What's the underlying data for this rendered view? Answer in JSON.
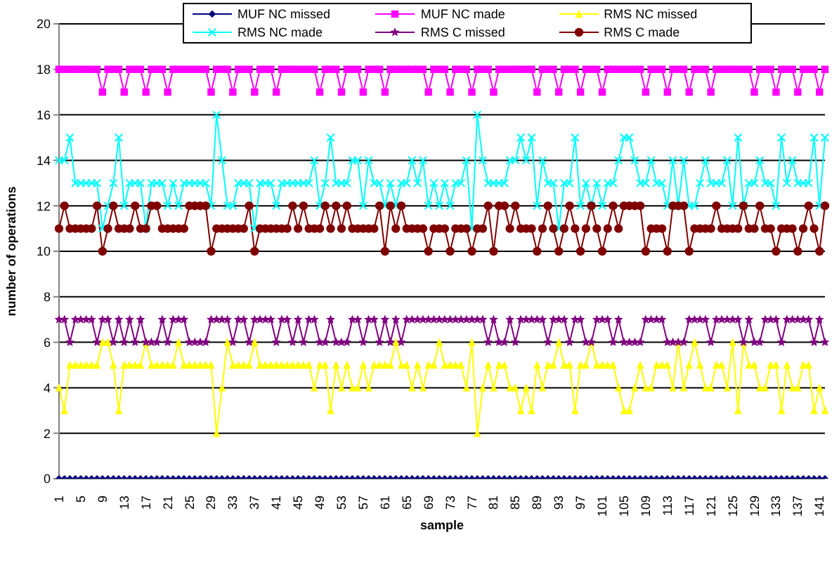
{
  "chart_data": {
    "type": "line",
    "xlabel": "sample",
    "ylabel": "number of operations",
    "categories": [
      "1",
      null,
      null,
      null,
      "5",
      null,
      null,
      null,
      "9",
      null,
      null,
      null,
      "13",
      null,
      null,
      null,
      "17",
      null,
      null,
      null,
      "21",
      null,
      null,
      null,
      "25",
      null,
      null,
      null,
      "29",
      null,
      null,
      null,
      "33",
      null,
      null,
      null,
      "37",
      null,
      null,
      null,
      "41",
      null,
      null,
      null,
      "45",
      null,
      null,
      null,
      "49",
      null,
      null,
      null,
      "53",
      null,
      null,
      null,
      "57",
      null,
      null,
      null,
      "61",
      null,
      null,
      null,
      "65",
      null,
      null,
      null,
      "69",
      null,
      null,
      null,
      "73",
      null,
      null,
      null,
      "77",
      null,
      null,
      null,
      "81",
      null,
      null,
      null,
      "85",
      null,
      null,
      null,
      "89",
      null,
      null,
      null,
      "93",
      null,
      null,
      null,
      "97",
      null,
      null,
      null,
      "101",
      null,
      null,
      null,
      "105",
      null,
      null,
      null,
      "109",
      null,
      null,
      null,
      "113",
      null,
      null,
      null,
      "117",
      null,
      null,
      null,
      "121",
      null,
      null,
      null,
      "125",
      null,
      null,
      null,
      "129",
      null,
      null,
      null,
      "133",
      null,
      null,
      null,
      "137",
      null,
      null,
      null,
      "141",
      null
    ],
    "series": [
      {
        "name": "MUF NC missed",
        "color": "#000080",
        "marker": "diamond",
        "values": [
          0,
          0,
          0,
          0,
          0,
          0,
          0,
          0,
          0,
          0,
          0,
          0,
          0,
          0,
          0,
          0,
          0,
          0,
          0,
          0,
          0,
          0,
          0,
          0,
          0,
          0,
          0,
          0,
          0,
          0,
          0,
          0,
          0,
          0,
          0,
          0,
          0,
          0,
          0,
          0,
          0,
          0,
          0,
          0,
          0,
          0,
          0,
          0,
          0,
          0,
          0,
          0,
          0,
          0,
          0,
          0,
          0,
          0,
          0,
          0,
          0,
          0,
          0,
          0,
          0,
          0,
          0,
          0,
          0,
          0,
          0,
          0,
          0,
          0,
          0,
          0,
          0,
          0,
          0,
          0,
          0,
          0,
          0,
          0,
          0,
          0,
          0,
          0,
          0,
          0,
          0,
          0,
          0,
          0,
          0,
          0,
          0,
          0,
          0,
          0,
          0,
          0,
          0,
          0,
          0,
          0,
          0,
          0,
          0,
          0,
          0,
          0,
          0,
          0,
          0,
          0,
          0,
          0,
          0,
          0,
          0,
          0,
          0,
          0,
          0,
          0,
          0,
          0,
          0,
          0,
          0,
          0,
          0,
          0,
          0,
          0,
          0,
          0,
          0,
          0,
          0,
          0
        ]
      },
      {
        "name": "MUF NC made",
        "color": "#ff00ff",
        "marker": "square",
        "values": [
          18,
          18,
          18,
          18,
          18,
          18,
          18,
          18,
          17,
          18,
          18,
          18,
          17,
          18,
          18,
          18,
          17,
          18,
          18,
          18,
          17,
          18,
          18,
          18,
          18,
          18,
          18,
          18,
          17,
          18,
          18,
          18,
          17,
          18,
          18,
          18,
          17,
          18,
          18,
          18,
          17,
          18,
          18,
          18,
          18,
          18,
          18,
          18,
          17,
          18,
          18,
          18,
          17,
          18,
          18,
          18,
          17,
          18,
          18,
          18,
          17,
          18,
          18,
          18,
          18,
          18,
          18,
          18,
          17,
          18,
          18,
          18,
          17,
          18,
          18,
          18,
          17,
          18,
          18,
          18,
          17,
          18,
          18,
          18,
          18,
          18,
          18,
          18,
          17,
          18,
          18,
          18,
          17,
          18,
          18,
          18,
          17,
          18,
          18,
          18,
          17,
          18,
          18,
          18,
          18,
          18,
          18,
          18,
          17,
          18,
          18,
          18,
          17,
          18,
          18,
          18,
          17,
          18,
          18,
          18,
          17,
          18,
          18,
          18,
          18,
          18,
          18,
          18,
          17,
          18,
          18,
          18,
          17,
          18,
          18,
          18,
          17,
          18,
          18,
          18,
          17,
          18
        ]
      },
      {
        "name": "RMS NC missed",
        "color": "#ffff00",
        "marker": "triangle",
        "values": [
          4,
          3,
          5,
          5,
          5,
          5,
          5,
          5,
          6,
          6,
          5,
          3,
          5,
          5,
          5,
          5,
          6,
          5,
          5,
          5,
          5,
          5,
          6,
          5,
          5,
          5,
          5,
          5,
          5,
          2,
          4,
          6,
          5,
          5,
          5,
          5,
          6,
          5,
          5,
          5,
          5,
          5,
          5,
          5,
          5,
          5,
          5,
          4,
          5,
          5,
          3,
          5,
          4,
          5,
          4,
          4,
          5,
          4,
          5,
          5,
          5,
          5,
          6,
          5,
          5,
          4,
          5,
          4,
          5,
          5,
          6,
          5,
          5,
          5,
          5,
          4,
          6,
          2,
          4,
          5,
          4,
          5,
          5,
          4,
          4,
          3,
          4,
          3,
          5,
          4,
          5,
          5,
          6,
          5,
          5,
          3,
          5,
          5,
          6,
          5,
          5,
          5,
          5,
          4,
          3,
          3,
          4,
          5,
          4,
          4,
          5,
          5,
          5,
          4,
          6,
          4,
          5,
          6,
          5,
          4,
          4,
          5,
          5,
          4,
          6,
          3,
          6,
          5,
          5,
          4,
          4,
          5,
          5,
          3,
          5,
          4,
          4,
          5,
          5,
          3,
          4,
          3
        ]
      },
      {
        "name": "RMS NC made",
        "color": "#00ffff",
        "marker": "cross",
        "values": [
          14,
          14,
          15,
          13,
          13,
          13,
          13,
          13,
          11,
          12,
          13,
          15,
          12,
          13,
          13,
          13,
          11,
          13,
          13,
          13,
          12,
          13,
          12,
          13,
          13,
          13,
          13,
          13,
          12,
          16,
          14,
          12,
          12,
          13,
          13,
          13,
          11,
          13,
          13,
          13,
          12,
          13,
          13,
          13,
          13,
          13,
          13,
          14,
          12,
          13,
          15,
          13,
          13,
          13,
          14,
          14,
          12,
          14,
          13,
          13,
          12,
          13,
          12,
          13,
          13,
          14,
          13,
          14,
          12,
          13,
          12,
          13,
          12,
          13,
          13,
          14,
          11,
          16,
          14,
          13,
          13,
          13,
          13,
          14,
          14,
          15,
          14,
          15,
          12,
          14,
          13,
          13,
          11,
          13,
          13,
          15,
          12,
          13,
          12,
          13,
          12,
          13,
          13,
          14,
          15,
          15,
          14,
          13,
          13,
          14,
          13,
          13,
          12,
          14,
          12,
          14,
          12,
          12,
          13,
          14,
          13,
          13,
          13,
          14,
          12,
          15,
          12,
          13,
          13,
          14,
          13,
          13,
          12,
          15,
          13,
          14,
          13,
          13,
          13,
          15,
          12,
          15
        ]
      },
      {
        "name": "RMS C missed",
        "color": "#800080",
        "marker": "star",
        "values": [
          7,
          7,
          6,
          7,
          7,
          7,
          7,
          6,
          7,
          7,
          6,
          7,
          6,
          7,
          6,
          7,
          6,
          6,
          6,
          7,
          6,
          7,
          7,
          7,
          6,
          6,
          6,
          6,
          7,
          7,
          7,
          7,
          6,
          7,
          7,
          6,
          7,
          7,
          7,
          7,
          6,
          7,
          7,
          6,
          7,
          6,
          7,
          7,
          6,
          6,
          7,
          6,
          6,
          6,
          7,
          7,
          6,
          7,
          7,
          6,
          7,
          6,
          7,
          6,
          7,
          7,
          7,
          7,
          7,
          7,
          7,
          7,
          7,
          7,
          7,
          7,
          7,
          7,
          7,
          6,
          7,
          6,
          6,
          7,
          6,
          7,
          7,
          7,
          7,
          7,
          6,
          7,
          7,
          7,
          6,
          7,
          7,
          6,
          6,
          7,
          7,
          7,
          6,
          7,
          6,
          6,
          6,
          6,
          7,
          7,
          7,
          7,
          6,
          6,
          6,
          6,
          7,
          7,
          7,
          7,
          6,
          7,
          7,
          7,
          7,
          7,
          6,
          7,
          6,
          6,
          7,
          7,
          7,
          6,
          7,
          7,
          7,
          7,
          7,
          6,
          7,
          6
        ]
      },
      {
        "name": "RMS C made",
        "color": "#800000",
        "marker": "circle",
        "values": [
          11,
          12,
          11,
          11,
          11,
          11,
          11,
          12,
          10,
          11,
          12,
          11,
          11,
          11,
          12,
          11,
          11,
          12,
          12,
          11,
          11,
          11,
          11,
          11,
          12,
          12,
          12,
          12,
          10,
          11,
          11,
          11,
          11,
          11,
          11,
          12,
          10,
          11,
          11,
          11,
          11,
          11,
          11,
          12,
          11,
          12,
          11,
          11,
          11,
          12,
          11,
          12,
          11,
          12,
          11,
          11,
          11,
          11,
          11,
          12,
          10,
          12,
          11,
          12,
          11,
          11,
          11,
          11,
          10,
          11,
          11,
          11,
          10,
          11,
          11,
          11,
          10,
          11,
          11,
          12,
          10,
          12,
          12,
          11,
          12,
          11,
          11,
          11,
          10,
          11,
          12,
          11,
          10,
          11,
          12,
          11,
          10,
          11,
          12,
          11,
          10,
          11,
          12,
          11,
          12,
          12,
          12,
          12,
          10,
          11,
          11,
          11,
          10,
          12,
          12,
          12,
          10,
          11,
          11,
          11,
          11,
          12,
          11,
          11,
          11,
          11,
          12,
          11,
          11,
          12,
          11,
          11,
          10,
          11,
          11,
          11,
          10,
          11,
          12,
          11,
          10,
          12
        ]
      }
    ],
    "ylim": [
      0,
      20
    ],
    "yticks": [
      0,
      2,
      4,
      6,
      8,
      10,
      12,
      14,
      16,
      18,
      20
    ],
    "grid": "y",
    "legend": "top"
  }
}
